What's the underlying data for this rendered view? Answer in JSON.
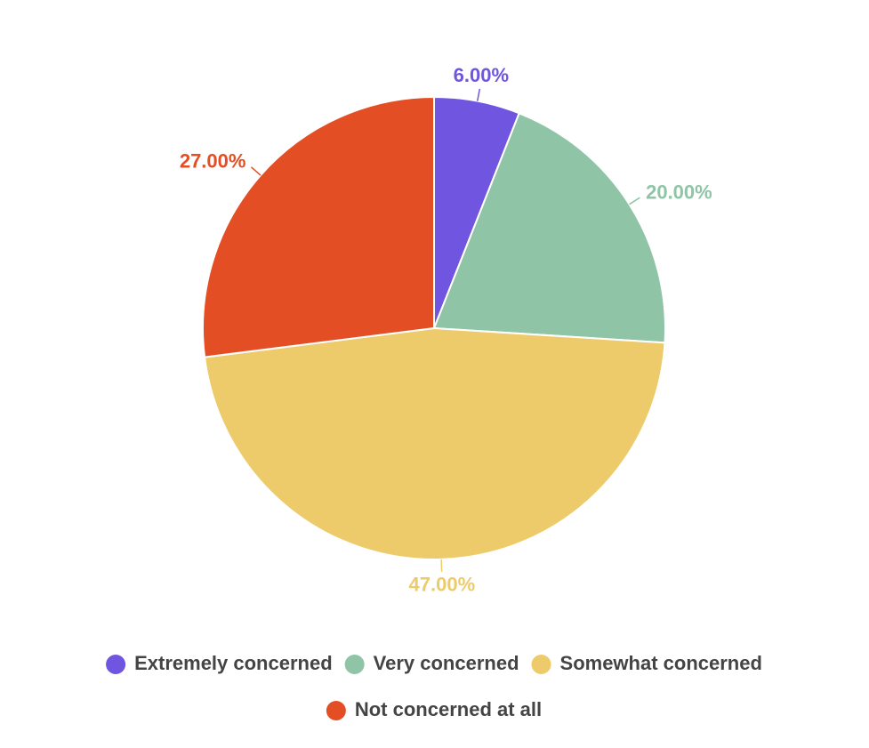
{
  "chart_data": {
    "type": "pie",
    "categories": [
      "Extremely concerned",
      "Very concerned",
      "Somewhat concerned",
      "Not concerned at all"
    ],
    "values": [
      6,
      20,
      47,
      27
    ],
    "value_labels": [
      "6.00%",
      "20.00%",
      "47.00%",
      "27.00%"
    ],
    "colors": [
      "#6f55e0",
      "#8fc4a6",
      "#eecb6a",
      "#e44e24"
    ]
  }
}
